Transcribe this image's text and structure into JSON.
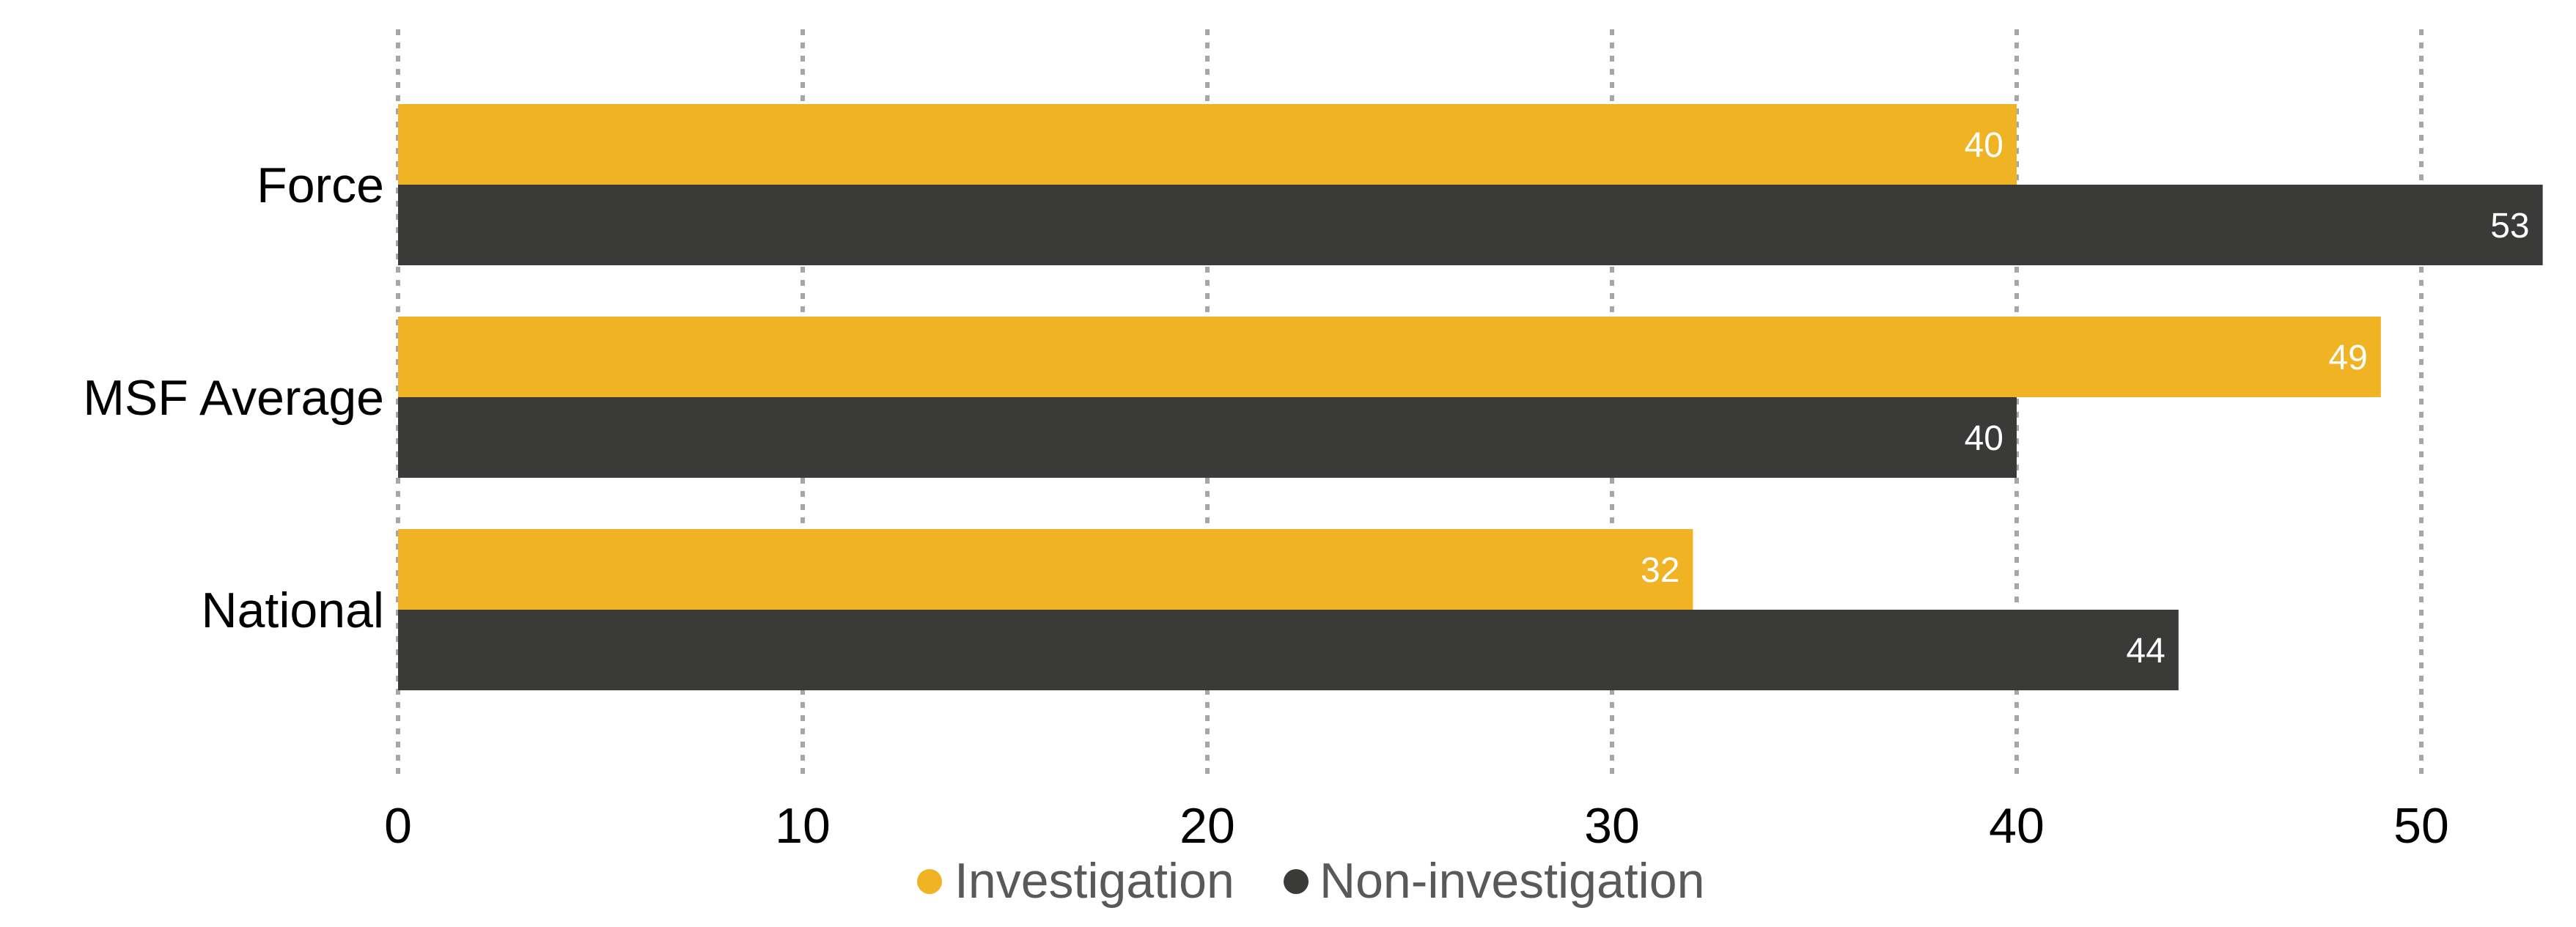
{
  "chart_data": {
    "type": "bar",
    "orientation": "horizontal",
    "categories": [
      "Force",
      "MSF Average",
      "National"
    ],
    "series": [
      {
        "name": "Investigation",
        "color": "#f0b323",
        "values": [
          40,
          49,
          32
        ]
      },
      {
        "name": "Non-investigation",
        "color": "#3a3b39",
        "values": [
          53,
          40,
          44
        ]
      }
    ],
    "data_labels": [
      [
        "40",
        "49",
        "32"
      ],
      [
        "53",
        "40",
        "44"
      ]
    ],
    "x_ticks": [
      0,
      10,
      20,
      30,
      40,
      50
    ],
    "xlim": [
      0,
      53
    ],
    "grid": "vertical-dotted",
    "legend_position": "bottom-center",
    "title": "",
    "xlabel": "",
    "ylabel": ""
  }
}
